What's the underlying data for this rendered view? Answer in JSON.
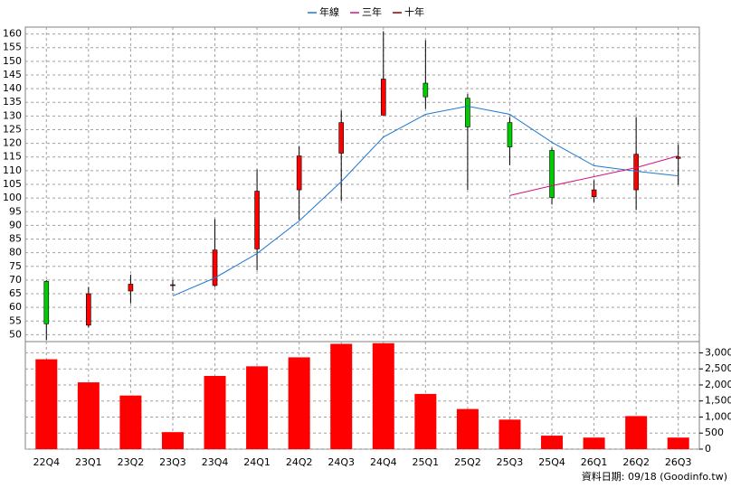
{
  "chart_data": [
    {
      "type": "candlestick",
      "open": [
        69.5,
        53.5,
        66,
        68,
        68,
        81.4,
        103,
        116.4,
        130.3,
        142,
        136.5,
        127.6,
        117.4,
        100.5,
        103,
        114.5
      ],
      "high": [
        70,
        67.5,
        72,
        70,
        92.3,
        110.5,
        119,
        132,
        161,
        157.7,
        138,
        129.6,
        118.4,
        106.5,
        129.6,
        119.7
      ],
      "low": [
        48,
        52.7,
        61.5,
        66,
        67.5,
        73.5,
        92,
        99,
        130.3,
        132.6,
        103,
        112,
        97.6,
        98.5,
        95.6,
        104.8
      ],
      "close": [
        54,
        65,
        68.5,
        68.3,
        81,
        102.5,
        115.4,
        127.6,
        143.5,
        137,
        126,
        118.7,
        100.2,
        103,
        116,
        115
      ],
      "up_color": "#ff0000",
      "down_color": "#00cc00",
      "series": [
        {
          "name": "年線",
          "color": "#1e78d2",
          "values": [
            null,
            null,
            null,
            64.2,
            70.8,
            79.7,
            91.6,
            106,
            122.3,
            130.6,
            133.6,
            130.6,
            120.4,
            111.8,
            109.8,
            108.1
          ]
        },
        {
          "name": "三年",
          "color": "#d2147d",
          "values": [
            null,
            null,
            null,
            null,
            null,
            null,
            null,
            null,
            null,
            null,
            null,
            100.9,
            104.5,
            107.8,
            111.1,
            115.4
          ]
        },
        {
          "name": "十年",
          "color": "#8b0000",
          "values": [
            null,
            null,
            null,
            null,
            null,
            null,
            null,
            null,
            null,
            null,
            null,
            null,
            null,
            null,
            null,
            null
          ]
        }
      ],
      "ylim": [
        47.5,
        162.5
      ],
      "yticks": [
        50,
        55,
        60,
        65,
        70,
        75,
        80,
        85,
        90,
        95,
        100,
        105,
        110,
        115,
        120,
        125,
        130,
        135,
        140,
        145,
        150,
        155,
        160
      ],
      "grid": true,
      "note": "資料日期: 09/18 (Goodinfo.tw)"
    },
    {
      "type": "bar",
      "categories": [
        "22Q4",
        "23Q1",
        "23Q2",
        "23Q3",
        "23Q4",
        "24Q1",
        "24Q2",
        "24Q3",
        "24Q4",
        "25Q1",
        "25Q2",
        "25Q3",
        "25Q4",
        "26Q1",
        "26Q2",
        "26Q3"
      ],
      "values": [
        2800,
        2080,
        1670,
        530,
        2280,
        2580,
        2860,
        3280,
        3300,
        1720,
        1250,
        920,
        420,
        360,
        1030,
        360
      ],
      "color": "#ff0000",
      "ylim": [
        0,
        3350
      ],
      "yticks": [
        0,
        500,
        {
          "value": 1000,
          "label": "1,000"
        },
        {
          "value": 1500,
          "label": "1,500"
        },
        {
          "value": 2000,
          "label": "2,000"
        },
        {
          "value": 2500,
          "label": "2,500"
        },
        {
          "value": 3000,
          "label": "3,000"
        }
      ],
      "grid": true
    }
  ]
}
